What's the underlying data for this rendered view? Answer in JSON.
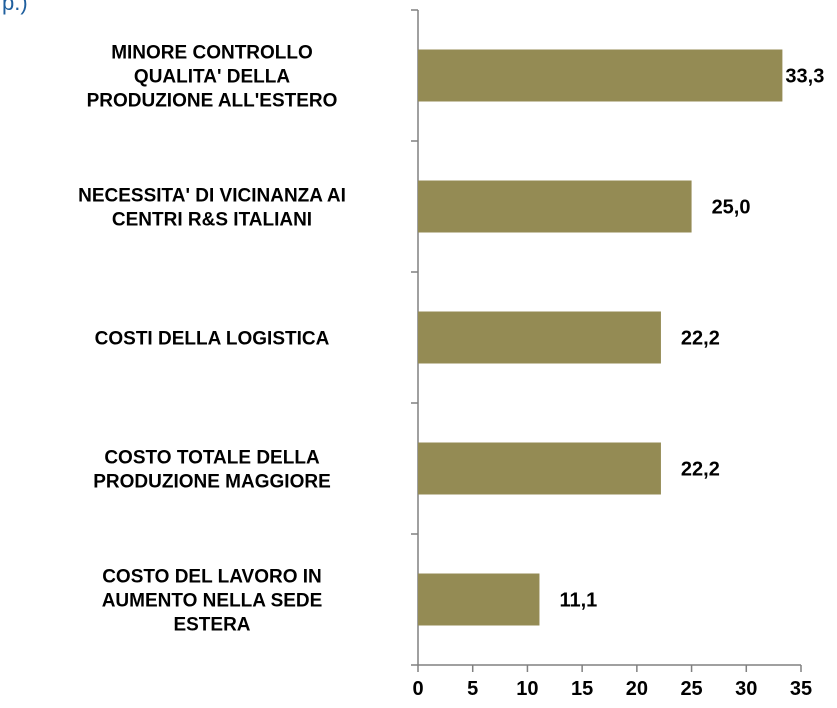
{
  "chart_data": {
    "type": "bar",
    "orientation": "horizontal",
    "title": "p.)",
    "categories": [
      "MINORE CONTROLLO\nQUALITA' DELLA\nPRODUZIONE ALL'ESTERO",
      "NECESSITA' DI VICINANZA AI\nCENTRI R&S ITALIANI",
      "COSTI DELLA LOGISTICA",
      "COSTO TOTALE DELLA\nPRODUZIONE MAGGIORE",
      "COSTO DEL LAVORO IN\nAUMENTO NELLA SEDE\nESTERA"
    ],
    "values": [
      33.3,
      25.0,
      22.2,
      22.2,
      11.1
    ],
    "value_labels": [
      "33,3",
      "25,0",
      "22,2",
      "22,2",
      "11,1"
    ],
    "color": "#948b54",
    "xlim": [
      0,
      35
    ],
    "xticks": [
      0,
      5,
      10,
      15,
      20,
      25,
      30,
      35
    ],
    "grid": false
  }
}
